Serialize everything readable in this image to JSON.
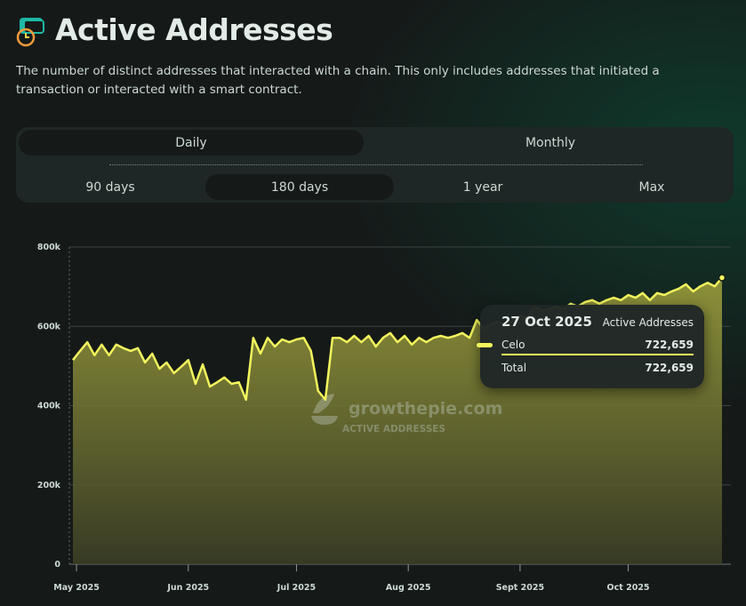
{
  "header": {
    "title": "Active Addresses",
    "description": "The number of distinct addresses that interacted with a chain. This only includes addresses that initiated a transaction or interacted with a smart contract."
  },
  "controls": {
    "interval": [
      "Daily",
      "Monthly"
    ],
    "range": [
      "90 days",
      "180 days",
      "1 year",
      "Max"
    ]
  },
  "chart_data": {
    "type": "area",
    "x": [
      "2025-04-30",
      "2025-05-02",
      "2025-05-04",
      "2025-05-06",
      "2025-05-08",
      "2025-05-10",
      "2025-05-12",
      "2025-05-14",
      "2025-05-16",
      "2025-05-18",
      "2025-05-20",
      "2025-05-22",
      "2025-05-24",
      "2025-05-26",
      "2025-05-28",
      "2025-05-30",
      "2025-06-01",
      "2025-06-03",
      "2025-06-05",
      "2025-06-07",
      "2025-06-09",
      "2025-06-11",
      "2025-06-13",
      "2025-06-15",
      "2025-06-17",
      "2025-06-19",
      "2025-06-21",
      "2025-06-23",
      "2025-06-25",
      "2025-06-27",
      "2025-06-29",
      "2025-07-01",
      "2025-07-03",
      "2025-07-05",
      "2025-07-07",
      "2025-07-09",
      "2025-07-11",
      "2025-07-13",
      "2025-07-15",
      "2025-07-17",
      "2025-07-19",
      "2025-07-21",
      "2025-07-23",
      "2025-07-25",
      "2025-07-27",
      "2025-07-29",
      "2025-07-31",
      "2025-08-02",
      "2025-08-04",
      "2025-08-06",
      "2025-08-08",
      "2025-08-10",
      "2025-08-12",
      "2025-08-14",
      "2025-08-16",
      "2025-08-18",
      "2025-08-20",
      "2025-08-22",
      "2025-08-24",
      "2025-08-26",
      "2025-08-28",
      "2025-08-30",
      "2025-09-01",
      "2025-09-03",
      "2025-09-05",
      "2025-09-07",
      "2025-09-09",
      "2025-09-11",
      "2025-09-13",
      "2025-09-15",
      "2025-09-17",
      "2025-09-19",
      "2025-09-21",
      "2025-09-23",
      "2025-09-25",
      "2025-09-27",
      "2025-09-29",
      "2025-10-01",
      "2025-10-03",
      "2025-10-05",
      "2025-10-07",
      "2025-10-09",
      "2025-10-11",
      "2025-10-13",
      "2025-10-15",
      "2025-10-17",
      "2025-10-19",
      "2025-10-21",
      "2025-10-23",
      "2025-10-25",
      "2025-10-27"
    ],
    "series": [
      {
        "name": "Celo",
        "color": "#f3f65c",
        "values": [
          515000,
          538000,
          560000,
          527000,
          554000,
          527000,
          554000,
          545000,
          538000,
          545000,
          509000,
          531000,
          493000,
          509000,
          482000,
          498000,
          515000,
          455000,
          504000,
          448000,
          459000,
          471000,
          455000,
          459000,
          415000,
          571000,
          531000,
          571000,
          549000,
          567000,
          560000,
          567000,
          571000,
          538000,
          437000,
          415000,
          571000,
          571000,
          560000,
          576000,
          560000,
          576000,
          549000,
          571000,
          583000,
          560000,
          576000,
          554000,
          571000,
          560000,
          571000,
          576000,
          571000,
          576000,
          583000,
          571000,
          616000,
          594000,
          605000,
          612000,
          598000,
          616000,
          627000,
          621000,
          650000,
          639000,
          643000,
          650000,
          643000,
          657000,
          650000,
          661000,
          666000,
          657000,
          666000,
          672000,
          666000,
          679000,
          672000,
          684000,
          666000,
          684000,
          679000,
          688000,
          695000,
          706000,
          688000,
          701000,
          710000,
          701000,
          722659
        ]
      }
    ],
    "xlim": [
      "2025-04-30",
      "2025-10-27"
    ],
    "xticks": [
      {
        "value": "2025-05-01",
        "label": "May 2025"
      },
      {
        "value": "2025-06-01",
        "label": "Jun 2025"
      },
      {
        "value": "2025-07-01",
        "label": "Jul 2025"
      },
      {
        "value": "2025-08-01",
        "label": "Aug 2025"
      },
      {
        "value": "2025-09-01",
        "label": "Sept 2025"
      },
      {
        "value": "2025-10-01",
        "label": "Oct 2025"
      }
    ],
    "ylim": [
      0,
      800000
    ],
    "yticks": [
      0,
      {
        "value": 200000,
        "label": "200k"
      },
      {
        "value": 400000,
        "label": "400k"
      },
      {
        "value": 600000,
        "label": "600k"
      },
      {
        "value": 800000,
        "label": "800k"
      }
    ],
    "grid": true,
    "watermark": {
      "brand": "growthepie.com",
      "label": "ACTIVE ADDRESSES"
    },
    "tooltip": {
      "date": "27 Oct 2025",
      "metric": "Active Addresses",
      "row_name": "Celo",
      "row_value": "722,659",
      "total_name": "Total",
      "total_value": "722,659"
    }
  }
}
